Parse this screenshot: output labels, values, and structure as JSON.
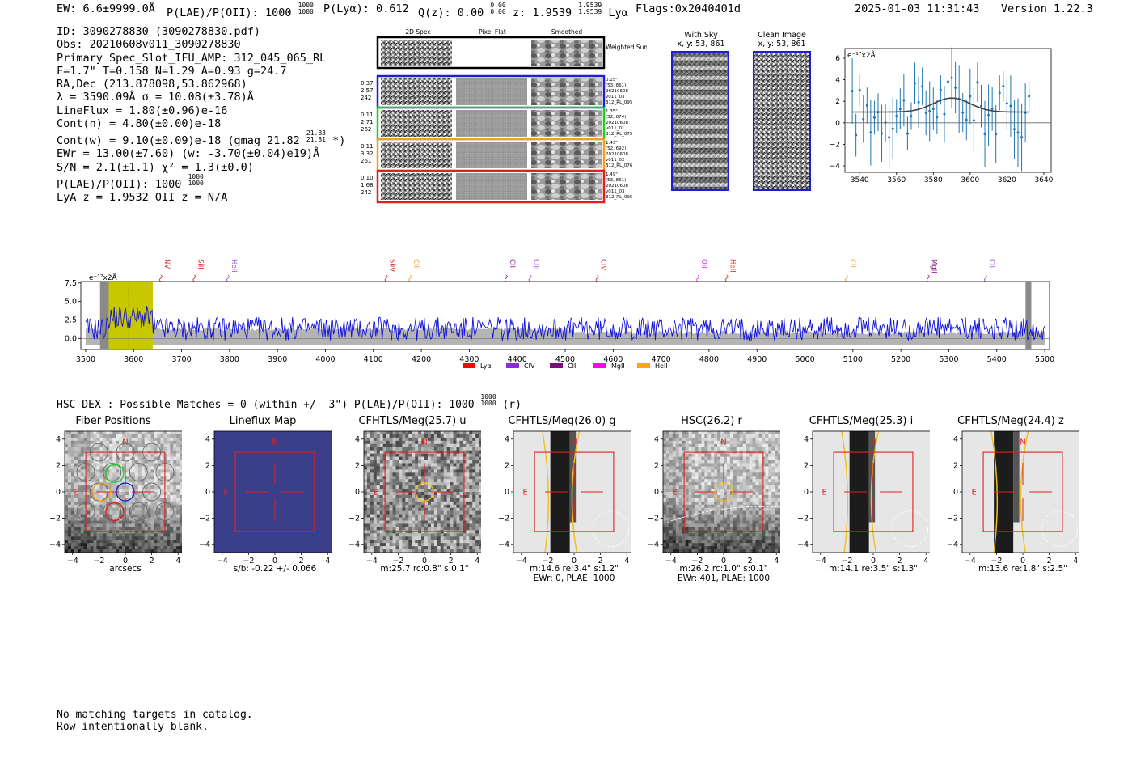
{
  "header": {
    "ew": "EW: 6.6±9999.0Å",
    "plae_label": "P(LAE)/P(OII):",
    "plae_value": "1000",
    "plae_hi": "1000",
    "plae_lo": "1000",
    "plya": "P(Lyα): 0.612",
    "qz_label": "Q(z): 0.00",
    "qz_hi": "0.00",
    "qz_lo": "0.00",
    "z_label": "z: 1.9539",
    "z_hi": "1.9539",
    "z_lo": "1.9539",
    "z_line": "Lyα",
    "flags": "Flags:0x2040401d",
    "timestamp": "2025-01-03 11:31:43",
    "version": "Version 1.22.3"
  },
  "info": {
    "id": "ID: 3090278830 (3090278830.pdf)",
    "obs": "Obs: 20210608v011_3090278830",
    "primary": "Primary Spec_Slot_IFU_AMP: 312_045_065_RL",
    "params": "F=1.7\"  T=0.158  N=1.29  A=0.93  g=24.7",
    "radec": "RA,Dec (213.878098,53.862968)",
    "lambda": "λ = 3590.09Å   σ = 10.08(±3.78)Å",
    "lineflux": "LineFlux = 1.80(±0.96)e-16",
    "contn": "Cont(n) = 4.80(±0.00)e-18",
    "contw": "Cont(w) = 9.10(±0.09)e-18 (gmag 21.82",
    "contw_hi": "21.83",
    "contw_lo": "21.81",
    "contw_tail": "*)",
    "ewr": "EWr = 13.00(±7.60) (w: -3.70(±0.04)e19)Å",
    "sn": "S/N = 2.1(±1.1)  χ² = 1.3(±0.0)",
    "plae": "P(LAE)/P(OII): 1000",
    "plae_hi": "1000",
    "plae_lo": "1000",
    "lya_z": "LyA z = 1.9532  OII z = N/A"
  },
  "spec2d": {
    "col_titles": [
      "2D Spec",
      "Pixel Flat",
      "Smoothed"
    ],
    "weighted": "Weighted Sum",
    "rows": [
      {
        "left": [
          "0.37",
          "2.57",
          "242"
        ],
        "right": [
          "0.15\"",
          "(53, 861)",
          "20210608",
          "v011_03",
          "312_RL_095"
        ],
        "color": "#1f1fd0"
      },
      {
        "left": [
          "0.11",
          "2.71",
          "262"
        ],
        "right": [
          "1.35\"",
          "(52, 674)",
          "20210608",
          "v011_01",
          "312_RL_075"
        ],
        "color": "#22cc22"
      },
      {
        "left": [
          "0.11",
          "3.32",
          "261"
        ],
        "right": [
          "1.43\"",
          "(52, 692)",
          "20210608",
          "v011_02",
          "312_RL_076"
        ],
        "color": "#f0a020"
      },
      {
        "left": [
          "0.10",
          "1.68",
          "242"
        ],
        "right": [
          "1.49\"",
          "(53, 861)",
          "20210608",
          "v011_03",
          "312_RL_095"
        ],
        "color": "#e02020"
      }
    ]
  },
  "cutouts_top": {
    "with_sky": "With Sky",
    "with_sky_xy": "x, y: 53, 861",
    "clean": "Clean Image",
    "clean_xy": "x, y: 53, 861"
  },
  "zoom_chart": {
    "unit": "e⁻¹⁷x2Å",
    "xticks": [
      "3540",
      "3560",
      "3580",
      "3600",
      "3620",
      "3640"
    ],
    "yticks": [
      "6",
      "4",
      "2",
      "0",
      "−2",
      "−4"
    ]
  },
  "chart_data": {
    "type": "line",
    "title": "",
    "ylabel": "e⁻¹⁷x2Å",
    "xlim": [
      3490,
      5510
    ],
    "ylim": [
      -1.5,
      7.7
    ],
    "xticks": [
      "3500",
      "3600",
      "3700",
      "3800",
      "3900",
      "4000",
      "4100",
      "4200",
      "4300",
      "4400",
      "4500",
      "4600",
      "4700",
      "4800",
      "4900",
      "5000",
      "5100",
      "5200",
      "5300",
      "5400",
      "5500"
    ],
    "yticks": [
      "7.5",
      "5.0",
      "2.5",
      "0.0"
    ],
    "line_markers": [
      {
        "name": "NV",
        "x": 3660,
        "color": "#e02020"
      },
      {
        "name": "SiII",
        "x": 3730,
        "color": "#e02020"
      },
      {
        "name": "HeII",
        "x": 3800,
        "color": "#9b4dca"
      },
      {
        "name": "SiIV",
        "x": 4130,
        "color": "#e02020"
      },
      {
        "name": "CIII",
        "x": 4180,
        "color": "#f0a020"
      },
      {
        "name": "CII",
        "x": 4380,
        "color": "#8b1a8b"
      },
      {
        "name": "CIII",
        "x": 4430,
        "color": "#9b4dca"
      },
      {
        "name": "CIV",
        "x": 4570,
        "color": "#e02020"
      },
      {
        "name": "OII",
        "x": 4780,
        "color": "#e030e0"
      },
      {
        "name": "HeII",
        "x": 4840,
        "color": "#e02020"
      },
      {
        "name": "CII",
        "x": 5090,
        "color": "#f0a020"
      },
      {
        "name": "MgII",
        "x": 5260,
        "color": "#8b1a8b"
      },
      {
        "name": "CII",
        "x": 5380,
        "color": "#9b4dca"
      }
    ],
    "legend": [
      {
        "name": "Lyα",
        "color": "#ff0000"
      },
      {
        "name": "CIV",
        "color": "#8a2be2"
      },
      {
        "name": "CIII",
        "color": "#7b0d7b"
      },
      {
        "name": "MgII",
        "color": "#ff00ff"
      },
      {
        "name": "HeII",
        "color": "#ffa500"
      }
    ],
    "highlight_range": [
      3540,
      3640
    ],
    "line_center": 3590
  },
  "hsc": {
    "title": "HSC-DEX : Possible Matches = 0 (within +/- 3\")  P(LAE)/P(OII): 1000",
    "hi": "1000",
    "lo": "1000",
    "tail": "(r)"
  },
  "cutouts": [
    {
      "title": "Fiber Positions",
      "sub": [
        "arcsecs"
      ]
    },
    {
      "title": "Lineflux Map",
      "sub": [
        "s/b: -0.22 +/- 0.066"
      ]
    },
    {
      "title": "CFHTLS/Meg(25.7) u",
      "sub": [
        "m:25.7 rc:0.8\"  s:0.1\""
      ]
    },
    {
      "title": "CFHTLS/Meg(26.0) g",
      "sub": [
        "m:14.6  re:3.4\"  s:1.2\"",
        "EWr: 0, PLAE: 1000"
      ]
    },
    {
      "title": "HSC(26.2) r",
      "sub": [
        "m:26.2 rc:1.0\"  s:0.1\"",
        "EWr: 401, PLAE: 1000"
      ]
    },
    {
      "title": "CFHTLS/Meg(25.3) i",
      "sub": [
        "m:14.1  re:3.5\"  s:1.3\""
      ]
    },
    {
      "title": "CFHTLS/Meg(24.4) z",
      "sub": [
        "m:13.6  re:1.8\"  s:2.5\""
      ]
    }
  ],
  "cutout_axes": {
    "ticks": [
      "−4",
      "−2",
      "0",
      "2",
      "4"
    ],
    "north": "N",
    "east": "E"
  },
  "footer": {
    "line1": "No matching targets in catalog.",
    "line2": "Row intentionally blank."
  }
}
